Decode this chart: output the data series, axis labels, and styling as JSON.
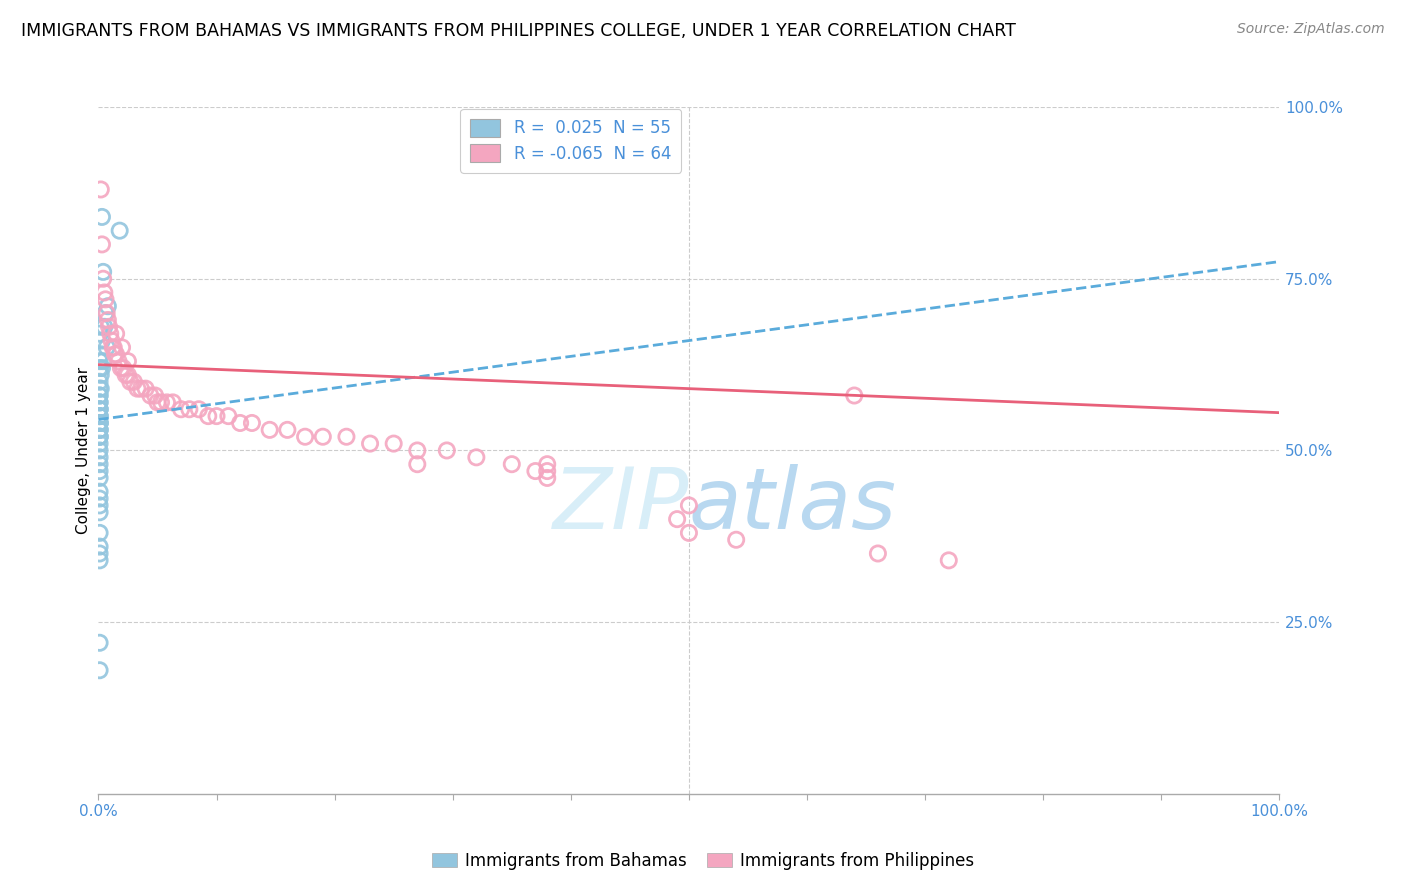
{
  "title": "IMMIGRANTS FROM BAHAMAS VS IMMIGRANTS FROM PHILIPPINES COLLEGE, UNDER 1 YEAR CORRELATION CHART",
  "source": "Source: ZipAtlas.com",
  "ylabel": "College, Under 1 year",
  "legend_entry1_r": " 0.025",
  "legend_entry1_n": "55",
  "legend_entry2_r": "-0.065",
  "legend_entry2_n": "64",
  "legend_label1": "Immigrants from Bahamas",
  "legend_label2": "Immigrants from Philippines",
  "blue_color": "#92c5de",
  "pink_color": "#f4a6c0",
  "blue_line_color": "#5aabdb",
  "pink_line_color": "#e8607a",
  "right_axis_color": "#4a90d9",
  "watermark_color": "#d8eef8",
  "grid_color": "#cccccc",
  "title_fontsize": 12.5,
  "source_fontsize": 10,
  "R1": 0.025,
  "N1": 55,
  "R2": -0.065,
  "N2": 64,
  "xmin": 0.0,
  "xmax": 1.0,
  "ymin": 0.0,
  "ymax": 1.0,
  "blue_tl": [
    0.0,
    1.0,
    0.545,
    0.775
  ],
  "pink_tl": [
    0.0,
    1.0,
    0.625,
    0.555
  ],
  "blue_x": [
    0.003,
    0.018,
    0.004,
    0.008,
    0.006,
    0.002,
    0.005,
    0.001,
    0.003,
    0.007,
    0.002,
    0.004,
    0.001,
    0.003,
    0.001,
    0.002,
    0.001,
    0.001,
    0.002,
    0.001,
    0.001,
    0.001,
    0.001,
    0.001,
    0.001,
    0.001,
    0.001,
    0.001,
    0.001,
    0.001,
    0.001,
    0.001,
    0.001,
    0.001,
    0.001,
    0.001,
    0.001,
    0.001,
    0.001,
    0.001,
    0.001,
    0.001,
    0.001,
    0.001,
    0.001,
    0.001,
    0.001,
    0.001,
    0.001,
    0.001,
    0.001,
    0.001,
    0.001,
    0.001,
    0.001
  ],
  "blue_y": [
    0.84,
    0.82,
    0.76,
    0.71,
    0.7,
    0.68,
    0.68,
    0.67,
    0.66,
    0.65,
    0.64,
    0.63,
    0.63,
    0.62,
    0.62,
    0.61,
    0.6,
    0.59,
    0.59,
    0.58,
    0.58,
    0.57,
    0.57,
    0.56,
    0.56,
    0.56,
    0.55,
    0.55,
    0.55,
    0.54,
    0.54,
    0.54,
    0.54,
    0.53,
    0.53,
    0.53,
    0.52,
    0.52,
    0.52,
    0.51,
    0.5,
    0.49,
    0.48,
    0.47,
    0.46,
    0.44,
    0.43,
    0.42,
    0.41,
    0.38,
    0.36,
    0.35,
    0.34,
    0.22,
    0.18
  ],
  "pink_x": [
    0.002,
    0.003,
    0.004,
    0.005,
    0.006,
    0.007,
    0.008,
    0.009,
    0.01,
    0.011,
    0.012,
    0.013,
    0.014,
    0.015,
    0.017,
    0.019,
    0.021,
    0.023,
    0.025,
    0.027,
    0.03,
    0.033,
    0.036,
    0.04,
    0.044,
    0.048,
    0.053,
    0.058,
    0.063,
    0.07,
    0.077,
    0.085,
    0.093,
    0.1,
    0.11,
    0.12,
    0.13,
    0.145,
    0.16,
    0.175,
    0.19,
    0.21,
    0.23,
    0.25,
    0.27,
    0.295,
    0.32,
    0.35,
    0.38,
    0.015,
    0.02,
    0.025,
    0.49,
    0.5,
    0.54,
    0.64,
    0.66,
    0.72,
    0.5,
    0.37,
    0.38,
    0.38,
    0.27,
    0.05
  ],
  "pink_y": [
    0.88,
    0.8,
    0.75,
    0.73,
    0.72,
    0.7,
    0.69,
    0.68,
    0.67,
    0.66,
    0.65,
    0.65,
    0.64,
    0.64,
    0.63,
    0.62,
    0.62,
    0.61,
    0.61,
    0.6,
    0.6,
    0.59,
    0.59,
    0.59,
    0.58,
    0.58,
    0.57,
    0.57,
    0.57,
    0.56,
    0.56,
    0.56,
    0.55,
    0.55,
    0.55,
    0.54,
    0.54,
    0.53,
    0.53,
    0.52,
    0.52,
    0.52,
    0.51,
    0.51,
    0.5,
    0.5,
    0.49,
    0.48,
    0.48,
    0.67,
    0.65,
    0.63,
    0.4,
    0.38,
    0.37,
    0.58,
    0.35,
    0.34,
    0.42,
    0.47,
    0.46,
    0.47,
    0.48,
    0.57
  ]
}
